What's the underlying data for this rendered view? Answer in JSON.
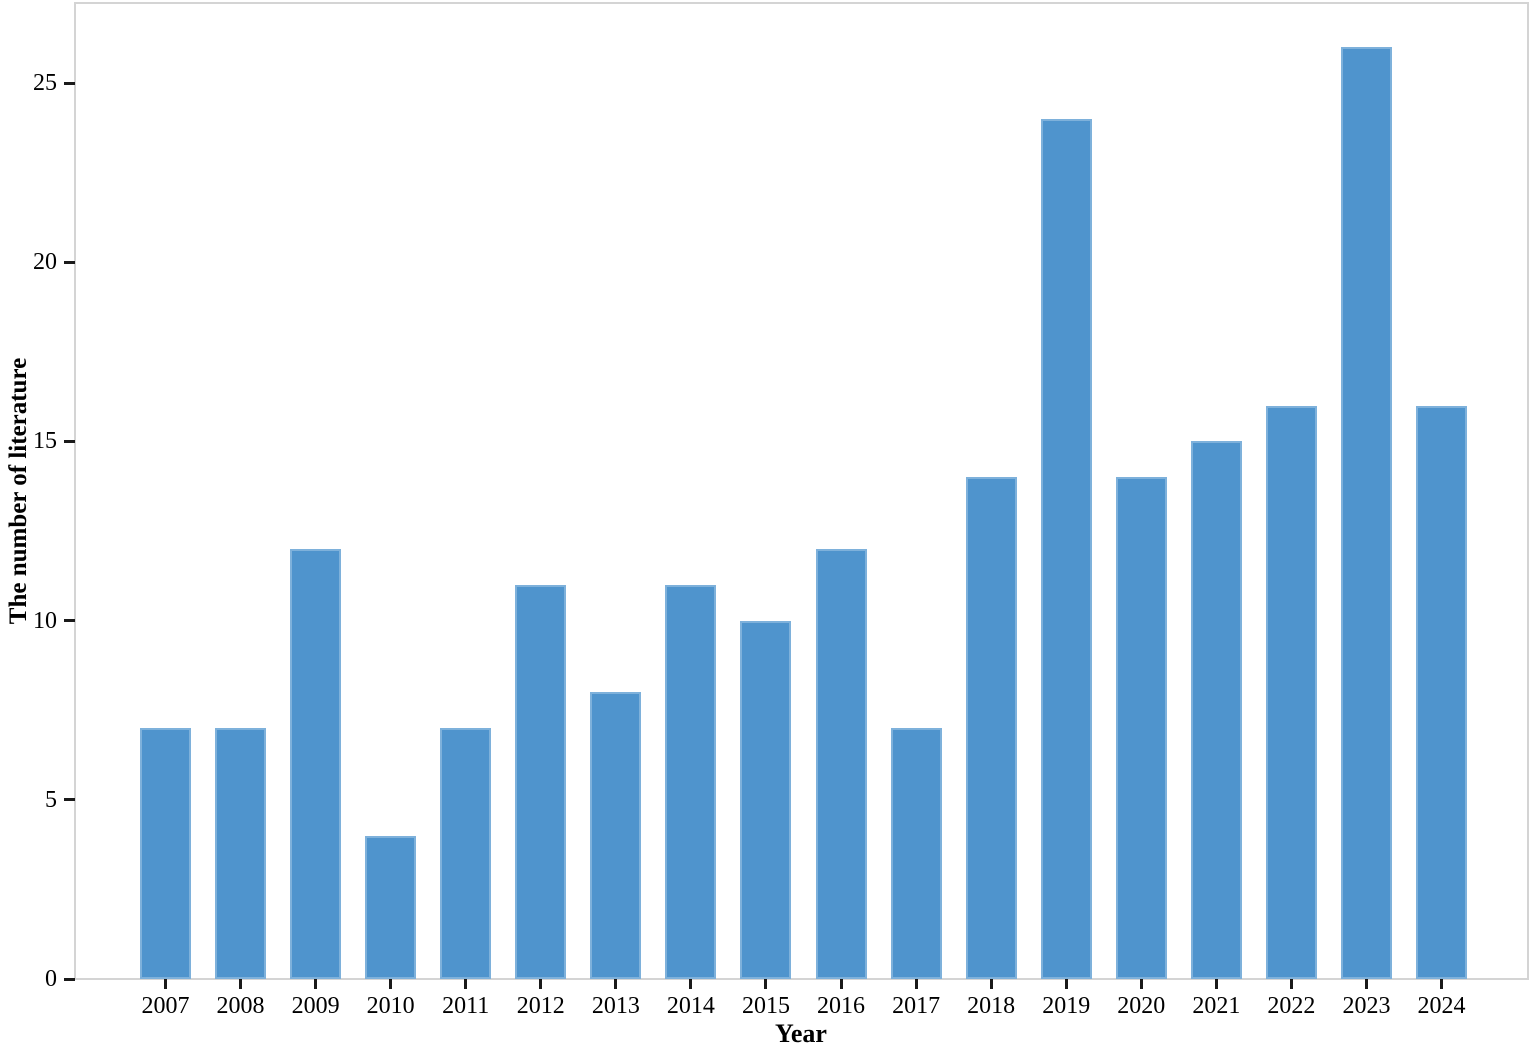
{
  "chart_data": {
    "type": "bar",
    "categories": [
      "2007",
      "2008",
      "2009",
      "2010",
      "2011",
      "2012",
      "2013",
      "2014",
      "2015",
      "2016",
      "2017",
      "2018",
      "2019",
      "2020",
      "2021",
      "2022",
      "2023",
      "2024"
    ],
    "values": [
      7,
      7,
      12,
      4,
      7,
      11,
      8,
      11,
      10,
      12,
      7,
      14,
      24,
      14,
      15,
      16,
      26,
      16
    ],
    "title": "",
    "xlabel": "Year",
    "ylabel": "The number of literature",
    "ylim": [
      0,
      27.2
    ],
    "yticks": [
      0,
      5,
      10,
      15,
      20,
      25
    ],
    "y_tick_labels": [
      "0",
      "5",
      "10",
      "15",
      "20",
      "25"
    ],
    "grid": false,
    "legend_position": "none",
    "bar_color": "#4f94cd",
    "spine_color": "#d4d4d4",
    "tick_color": "#1a1a1a",
    "text_color": "#000000"
  }
}
